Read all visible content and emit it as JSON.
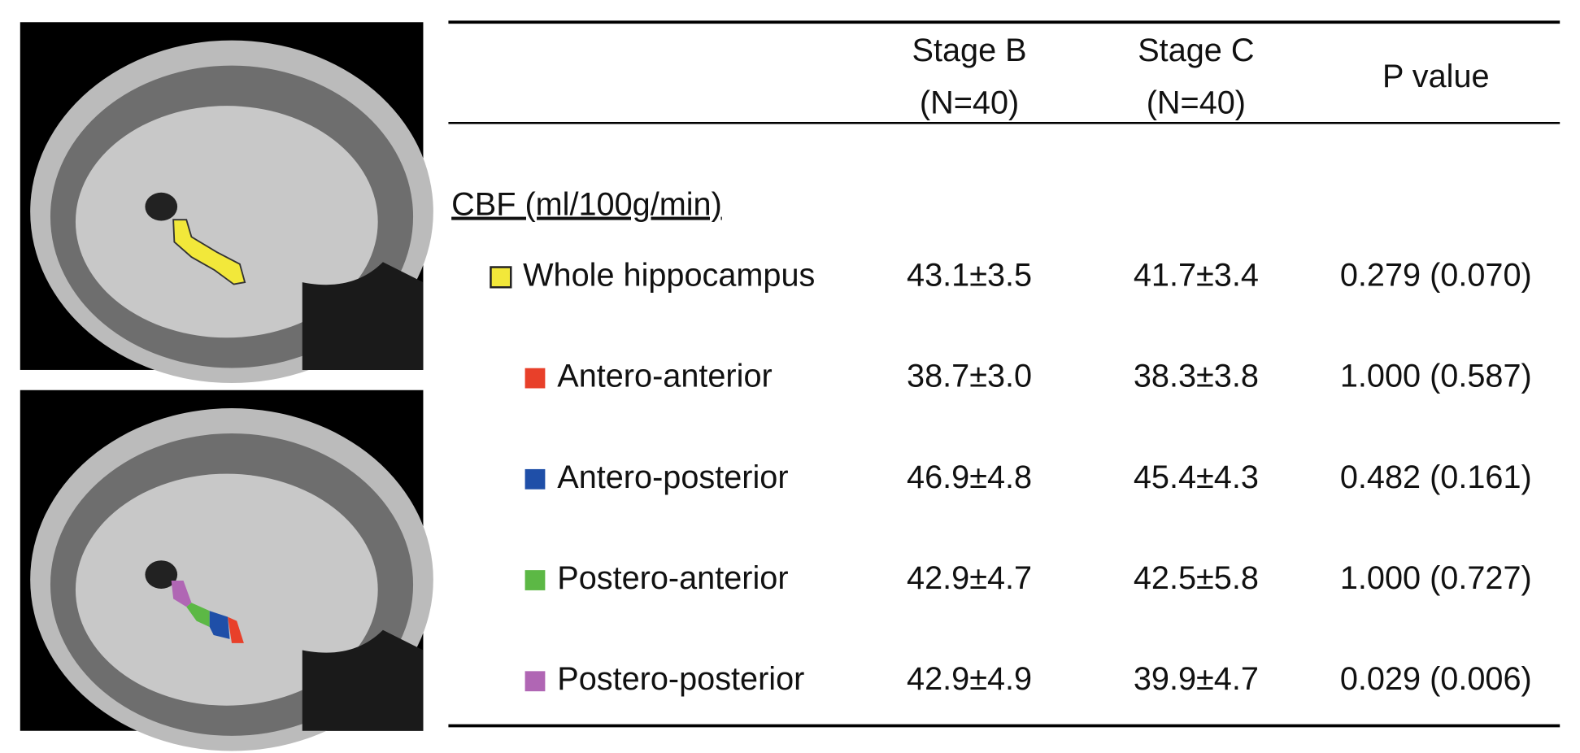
{
  "table": {
    "header": [
      "Stage B",
      "(N=40)",
      "Stage C",
      "(N=40)",
      "P value"
    ],
    "section": "CBF (ml/100g/min)",
    "rows": [
      {
        "label": "Whole hippocampus",
        "color": "#f2e83a",
        "stage_b": "43.1±3.5",
        "stage_c": "41.7±3.4",
        "p_value": "0.279 (0.070)"
      },
      {
        "label": "Antero-anterior",
        "color": "#e8402a",
        "stage_b": "38.7±3.0",
        "stage_c": "38.3±3.8",
        "p_value": "1.000 (0.587)"
      },
      {
        "label": "Antero-posterior",
        "color": "#1f4fa8",
        "stage_b": "46.9±4.8",
        "stage_c": "45.4±4.3",
        "p_value": "0.482 (0.161)"
      },
      {
        "label": "Postero-anterior",
        "color": "#5cb845",
        "stage_b": "42.9±4.7",
        "stage_c": "42.5±5.8",
        "p_value": "1.000 (0.727)"
      },
      {
        "label": "Postero-posterior",
        "color": "#b066b4",
        "stage_b": "42.9±4.9",
        "stage_c": "39.9±4.7",
        "p_value": "0.029 (0.006)"
      }
    ]
  }
}
